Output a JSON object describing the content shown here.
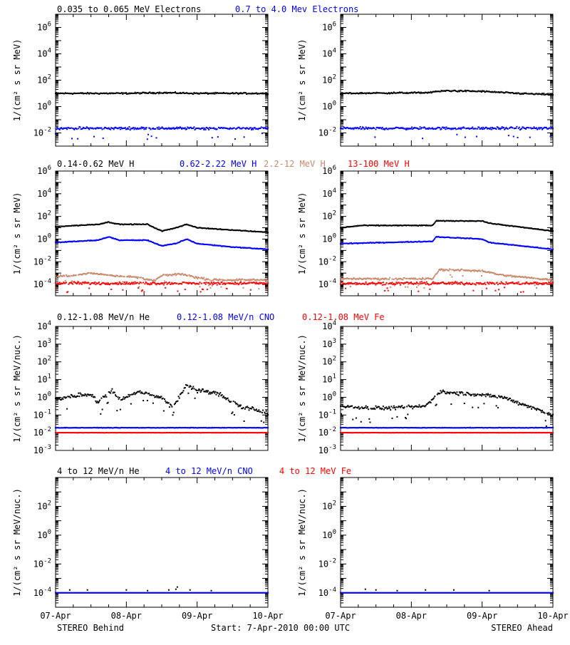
{
  "footer": {
    "left": "STEREO Behind",
    "center": "Start:  7-Apr-2010 00:00 UTC",
    "right": "STEREO Ahead"
  },
  "colors": {
    "black": "#000000",
    "blue": "#0000ff",
    "tan": "#c88a6c",
    "red": "#ff0000"
  },
  "x_tick_labels": [
    "07-Apr",
    "08-Apr",
    "09-Apr",
    "10-Apr"
  ],
  "chart_data": [
    {
      "type": "scatter",
      "row": 0,
      "ylabel": "1/(cm² s sr MeV)",
      "ylog": true,
      "ylim_exp": [
        -3,
        7
      ],
      "ytick_exps": [
        -2,
        0,
        2,
        4,
        6
      ],
      "legend": [
        {
          "text": "0.035 to 0.065 MeV Electrons",
          "color": "#000000"
        },
        {
          "text": "0.7 to 4.0 Mev Electrons",
          "color": "#0000ff"
        }
      ],
      "panels": [
        {
          "id": "behind",
          "series": [
            {
              "color": "#000000",
              "log_points": [
                [
                  0,
                  1.0
                ],
                [
                  1,
                  1.0
                ],
                [
                  1.5,
                  1.05
                ],
                [
                  2,
                  1.0
                ],
                [
                  3,
                  1.0
                ]
              ],
              "jitter": 0.08
            },
            {
              "color": "#0000ff",
              "log_points": [
                [
                  0,
                  -1.65
                ],
                [
                  3,
                  -1.65
                ]
              ],
              "jitter": 0.14
            }
          ]
        },
        {
          "id": "ahead",
          "series": [
            {
              "color": "#000000",
              "log_points": [
                [
                  0,
                  1.0
                ],
                [
                  1.2,
                  1.05
                ],
                [
                  1.5,
                  1.2
                ],
                [
                  2.0,
                  1.15
                ],
                [
                  2.5,
                  1.0
                ],
                [
                  3,
                  0.9
                ]
              ],
              "jitter": 0.08
            },
            {
              "color": "#0000ff",
              "log_points": [
                [
                  0,
                  -1.65
                ],
                [
                  3,
                  -1.65
                ]
              ],
              "jitter": 0.14
            }
          ]
        }
      ]
    },
    {
      "type": "scatter",
      "row": 1,
      "ylabel": "1/(cm² s sr MeV)",
      "ylog": true,
      "ylim_exp": [
        -5,
        6
      ],
      "ytick_exps": [
        -4,
        -2,
        0,
        2,
        4,
        6
      ],
      "legend": [
        {
          "text": "0.14-0.62 MeV H",
          "color": "#000000"
        },
        {
          "text": "0.62-2.22 MeV H",
          "color": "#0000ff"
        },
        {
          "text": "2.2-12 MeV H",
          "color": "#c88a6c"
        },
        {
          "text": "13-100 MeV H",
          "color": "#ff0000"
        }
      ],
      "panels": [
        {
          "id": "behind",
          "series": [
            {
              "color": "#000000",
              "log_points": [
                [
                  0,
                  1.1
                ],
                [
                  0.6,
                  1.3
                ],
                [
                  0.75,
                  1.5
                ],
                [
                  0.9,
                  1.3
                ],
                [
                  1.3,
                  1.3
                ],
                [
                  1.5,
                  0.7
                ],
                [
                  1.7,
                  1.0
                ],
                [
                  1.85,
                  1.3
                ],
                [
                  2.0,
                  1.0
                ],
                [
                  2.5,
                  0.8
                ],
                [
                  3,
                  0.6
                ]
              ],
              "jitter": 0.05
            },
            {
              "color": "#0000ff",
              "log_points": [
                [
                  0,
                  -0.3
                ],
                [
                  0.6,
                  -0.1
                ],
                [
                  0.75,
                  0.2
                ],
                [
                  0.9,
                  -0.1
                ],
                [
                  1.3,
                  -0.1
                ],
                [
                  1.5,
                  -0.6
                ],
                [
                  1.7,
                  -0.4
                ],
                [
                  1.85,
                  0.0
                ],
                [
                  2.0,
                  -0.4
                ],
                [
                  2.5,
                  -0.7
                ],
                [
                  3,
                  -0.9
                ]
              ],
              "jitter": 0.05
            },
            {
              "color": "#c88a6c",
              "log_points": [
                [
                  0,
                  -3.3
                ],
                [
                  0.3,
                  -3.2
                ],
                [
                  0.5,
                  -3.0
                ],
                [
                  0.8,
                  -3.2
                ],
                [
                  1.2,
                  -3.4
                ],
                [
                  1.4,
                  -3.7
                ],
                [
                  1.5,
                  -3.2
                ],
                [
                  1.8,
                  -3.1
                ],
                [
                  2.0,
                  -3.4
                ],
                [
                  2.2,
                  -3.6
                ],
                [
                  3,
                  -3.6
                ]
              ],
              "jitter": 0.12
            },
            {
              "color": "#ff0000",
              "log_points": [
                [
                  0,
                  -3.9
                ],
                [
                  3,
                  -3.9
                ]
              ],
              "jitter": 0.18
            }
          ]
        },
        {
          "id": "ahead",
          "series": [
            {
              "color": "#000000",
              "log_points": [
                [
                  0,
                  1.0
                ],
                [
                  0.3,
                  1.2
                ],
                [
                  1.3,
                  1.2
                ],
                [
                  1.35,
                  1.6
                ],
                [
                  2.0,
                  1.6
                ],
                [
                  2.1,
                  1.4
                ],
                [
                  3,
                  0.7
                ]
              ],
              "jitter": 0.05
            },
            {
              "color": "#0000ff",
              "log_points": [
                [
                  0,
                  -0.4
                ],
                [
                  1.3,
                  -0.2
                ],
                [
                  1.35,
                  0.2
                ],
                [
                  2.0,
                  0.0
                ],
                [
                  2.1,
                  -0.3
                ],
                [
                  3,
                  -0.9
                ]
              ],
              "jitter": 0.05
            },
            {
              "color": "#c88a6c",
              "log_points": [
                [
                  0,
                  -3.5
                ],
                [
                  1.3,
                  -3.5
                ],
                [
                  1.4,
                  -2.7
                ],
                [
                  2.0,
                  -2.8
                ],
                [
                  2.3,
                  -3.2
                ],
                [
                  3,
                  -3.6
                ]
              ],
              "jitter": 0.12
            },
            {
              "color": "#ff0000",
              "log_points": [
                [
                  0,
                  -3.9
                ],
                [
                  3,
                  -3.9
                ]
              ],
              "jitter": 0.18
            }
          ]
        }
      ]
    },
    {
      "type": "scatter",
      "row": 2,
      "ylabel": "1/(cm² s sr MeV/nuc.)",
      "ylog": true,
      "ylim_exp": [
        -3,
        4
      ],
      "ytick_exps": [
        -3,
        -2,
        -1,
        0,
        1,
        2,
        3,
        4
      ],
      "legend": [
        {
          "text": "0.12-1.08 MeV/n He",
          "color": "#000000"
        },
        {
          "text": "0.12-1.08 MeV/n CNO",
          "color": "#0000ff"
        },
        {
          "text": "0.12-1.08 MeV Fe",
          "color": "#ff0000"
        }
      ],
      "panels": [
        {
          "id": "behind",
          "series": [
            {
              "color": "#000000",
              "log_points": [
                [
                  0,
                  -0.1
                ],
                [
                  0.3,
                  0.1
                ],
                [
                  0.5,
                  0.2
                ],
                [
                  0.6,
                  -0.3
                ],
                [
                  0.8,
                  0.4
                ],
                [
                  0.9,
                  -0.1
                ],
                [
                  1.2,
                  0.3
                ],
                [
                  1.5,
                  0.0
                ],
                [
                  1.65,
                  -0.6
                ],
                [
                  1.85,
                  0.7
                ],
                [
                  2.0,
                  0.4
                ],
                [
                  2.3,
                  0.2
                ],
                [
                  2.6,
                  -0.5
                ],
                [
                  3,
                  -0.9
                ]
              ],
              "jitter": 0.18
            },
            {
              "color": "#0000ff",
              "log_points": [
                [
                  0,
                  -1.72
                ],
                [
                  3,
                  -1.72
                ]
              ],
              "jitter": 0.02
            },
            {
              "color": "#ff0000",
              "log_points": [
                [
                  0,
                  -2.0
                ],
                [
                  3,
                  -2.0
                ]
              ],
              "jitter": 0.01
            }
          ]
        },
        {
          "id": "ahead",
          "series": [
            {
              "color": "#000000",
              "log_points": [
                [
                  0,
                  -0.5
                ],
                [
                  0.4,
                  -0.6
                ],
                [
                  0.8,
                  -0.6
                ],
                [
                  1.2,
                  -0.5
                ],
                [
                  1.4,
                  0.3
                ],
                [
                  1.8,
                  0.2
                ],
                [
                  2.3,
                  0.0
                ],
                [
                  3,
                  -1.0
                ]
              ],
              "jitter": 0.15
            },
            {
              "color": "#0000ff",
              "log_points": [
                [
                  0,
                  -1.72
                ],
                [
                  3,
                  -1.72
                ]
              ],
              "jitter": 0.02
            },
            {
              "color": "#ff0000",
              "log_points": [
                [
                  0,
                  -2.0
                ],
                [
                  3,
                  -2.0
                ]
              ],
              "jitter": 0.01
            }
          ]
        }
      ]
    },
    {
      "type": "scatter",
      "row": 3,
      "ylabel": "1/(cm² s sr MeV/nuc.)",
      "ylog": true,
      "ylim_exp": [
        -5,
        4
      ],
      "ytick_exps": [
        -4,
        -2,
        0,
        2
      ],
      "legend": [
        {
          "text": "4 to 12 MeV/n He",
          "color": "#000000"
        },
        {
          "text": "4 to 12 MeV/n CNO",
          "color": "#0000ff"
        },
        {
          "text": "4 to 12 MeV Fe",
          "color": "#ff0000"
        }
      ],
      "panels": [
        {
          "id": "behind",
          "series": [
            {
              "color": "#0000ff",
              "log_points": [
                [
                  0,
                  -4.0
                ],
                [
                  3,
                  -4.0
                ]
              ],
              "jitter": 0.0
            },
            {
              "color": "#000000",
              "sparse_log": [
                [
                  0.2,
                  -3.8
                ],
                [
                  0.45,
                  -3.8
                ],
                [
                  1.0,
                  -3.8
                ],
                [
                  1.3,
                  -3.85
                ],
                [
                  1.6,
                  -3.8
                ],
                [
                  1.7,
                  -3.75
                ],
                [
                  1.72,
                  -3.6
                ],
                [
                  1.9,
                  -3.8
                ],
                [
                  2.2,
                  -3.85
                ]
              ],
              "jitter": 0.0
            }
          ]
        },
        {
          "id": "ahead",
          "series": [
            {
              "color": "#0000ff",
              "log_points": [
                [
                  0,
                  -4.0
                ],
                [
                  3,
                  -4.0
                ]
              ],
              "jitter": 0.0
            },
            {
              "color": "#000000",
              "sparse_log": [
                [
                  0.35,
                  -3.75
                ],
                [
                  0.5,
                  -3.8
                ],
                [
                  0.8,
                  -3.85
                ],
                [
                  1.2,
                  -3.8
                ],
                [
                  1.6,
                  -3.8
                ],
                [
                  2.1,
                  -3.85
                ]
              ],
              "jitter": 0.0
            }
          ]
        }
      ]
    }
  ]
}
